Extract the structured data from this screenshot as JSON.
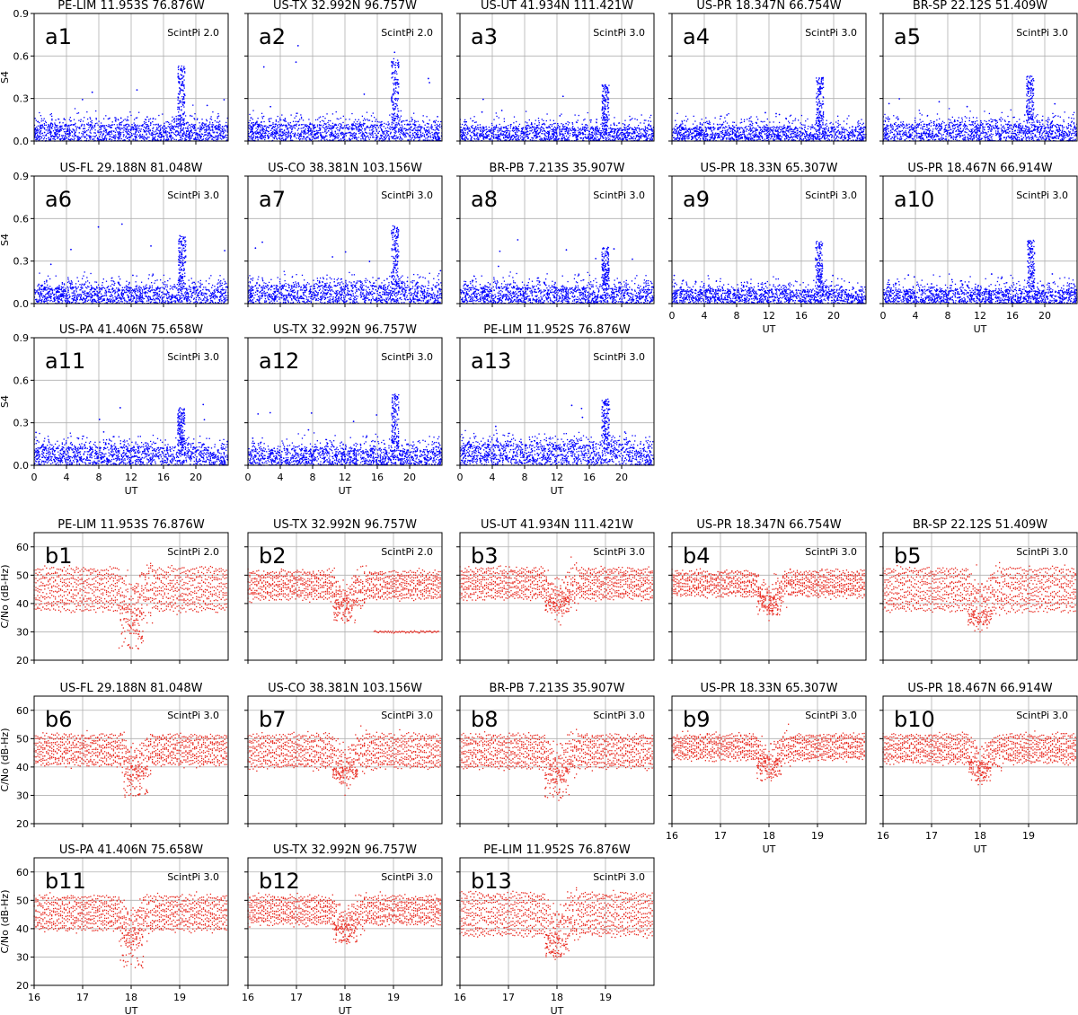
{
  "figure": {
    "groups": [
      {
        "id": "a",
        "ylabel": "S4",
        "xlabel": "UT",
        "dot_color": "#0000ff",
        "xticks": [
          "0",
          "4",
          "8",
          "12",
          "16",
          "20"
        ],
        "yticks": [
          "0.0",
          "0.3",
          "0.6",
          "0.9"
        ]
      },
      {
        "id": "b",
        "ylabel": "C/No (dB-Hz)",
        "xlabel": "UT",
        "dot_color": "#e8261c",
        "xticks": [
          "16",
          "17",
          "18",
          "19"
        ],
        "yticks": [
          "20",
          "30",
          "40",
          "50",
          "60"
        ]
      }
    ]
  },
  "chart_data": [
    {
      "type": "scatter",
      "panel": "a1",
      "title": "PE-LIM 11.953S 76.876W",
      "annotation": "ScintPi 2.0",
      "ylabel": "S4",
      "xlim": [
        0,
        24
      ],
      "ylim": [
        0,
        0.9
      ],
      "grid": true,
      "series": [
        {
          "values_note_baseline": 0.12,
          "peak_x": 18.2,
          "peak_y": 0.53,
          "max_outlier": 0.49
        }
      ]
    },
    {
      "type": "scatter",
      "panel": "a2",
      "title": "US-TX 32.992N 96.757W",
      "annotation": "ScintPi 2.0",
      "ylim": [
        0,
        0.9
      ],
      "xlim": [
        0,
        24
      ],
      "grid": true,
      "series": [
        {
          "baseline": 0.12,
          "peak_x": 18.2,
          "peak_y": 0.6,
          "max_outlier": 0.81
        }
      ]
    },
    {
      "type": "scatter",
      "panel": "a3",
      "title": "US-UT 41.934N 111.421W",
      "annotation": "ScintPi 3.0",
      "ylim": [
        0,
        0.9
      ],
      "xlim": [
        0,
        24
      ],
      "grid": true,
      "series": [
        {
          "baseline": 0.1,
          "peak_x": 18.0,
          "peak_y": 0.4,
          "max_outlier": 0.33
        }
      ]
    },
    {
      "type": "scatter",
      "panel": "a4",
      "title": "US-PR 18.347N 66.754W",
      "annotation": "ScintPi 3.0",
      "ylim": [
        0,
        0.9
      ],
      "xlim": [
        0,
        24
      ],
      "grid": true,
      "series": [
        {
          "baseline": 0.1,
          "peak_x": 18.3,
          "peak_y": 0.45,
          "max_outlier": 0.2
        }
      ]
    },
    {
      "type": "scatter",
      "panel": "a5",
      "title": "BR-SP 22.12S 51.409W",
      "annotation": "ScintPi 3.0",
      "ylim": [
        0,
        0.9
      ],
      "xlim": [
        0,
        24
      ],
      "grid": true,
      "series": [
        {
          "baseline": 0.12,
          "peak_x": 18.2,
          "peak_y": 0.46,
          "max_outlier": 0.3
        }
      ]
    },
    {
      "type": "scatter",
      "panel": "a6",
      "title": "US-FL 29.188N 81.048W",
      "annotation": "ScintPi 3.0",
      "ylim": [
        0,
        0.9
      ],
      "xlim": [
        0,
        24
      ],
      "grid": true,
      "series": [
        {
          "baseline": 0.12,
          "peak_x": 18.3,
          "peak_y": 0.48,
          "max_outlier": 0.57
        }
      ]
    },
    {
      "type": "scatter",
      "panel": "a7",
      "title": "US-CO 38.381N 103.156W",
      "annotation": "ScintPi 3.0",
      "ylim": [
        0,
        0.9
      ],
      "xlim": [
        0,
        24
      ],
      "grid": true,
      "series": [
        {
          "baseline": 0.13,
          "peak_x": 18.2,
          "peak_y": 0.56,
          "max_outlier": 0.44
        }
      ]
    },
    {
      "type": "scatter",
      "panel": "a8",
      "title": "BR-PB 7.213S 35.907W",
      "annotation": "ScintPi 3.0",
      "ylim": [
        0,
        0.9
      ],
      "xlim": [
        0,
        24
      ],
      "grid": true,
      "series": [
        {
          "baseline": 0.12,
          "peak_x": 18.0,
          "peak_y": 0.4,
          "max_outlier": 0.45
        }
      ]
    },
    {
      "type": "scatter",
      "panel": "a9",
      "title": "US-PR 18.33N 65.307W",
      "annotation": "ScintPi 3.0",
      "ylim": [
        0,
        0.9
      ],
      "xlim": [
        0,
        24
      ],
      "grid": true,
      "series": [
        {
          "baseline": 0.1,
          "peak_x": 18.2,
          "peak_y": 0.44,
          "max_outlier": 0.2
        }
      ]
    },
    {
      "type": "scatter",
      "panel": "a10",
      "title": "US-PR 18.467N 66.914W",
      "annotation": "ScintPi 3.0",
      "ylim": [
        0,
        0.9
      ],
      "xlim": [
        0,
        24
      ],
      "grid": true,
      "series": [
        {
          "baseline": 0.1,
          "peak_x": 18.3,
          "peak_y": 0.45,
          "max_outlier": 0.25
        }
      ]
    },
    {
      "type": "scatter",
      "panel": "a11",
      "title": "US-PA 41.406N 75.658W",
      "annotation": "ScintPi 3.0",
      "ylim": [
        0,
        0.9
      ],
      "xlim": [
        0,
        24
      ],
      "grid": true,
      "series": [
        {
          "baseline": 0.13,
          "peak_x": 18.2,
          "peak_y": 0.41,
          "max_outlier": 0.46
        }
      ]
    },
    {
      "type": "scatter",
      "panel": "a12",
      "title": "US-TX 32.992N 96.757W",
      "annotation": "ScintPi 3.0",
      "ylim": [
        0,
        0.9
      ],
      "xlim": [
        0,
        24
      ],
      "grid": true,
      "series": [
        {
          "baseline": 0.12,
          "peak_x": 18.2,
          "peak_y": 0.51,
          "max_outlier": 0.38
        }
      ]
    },
    {
      "type": "scatter",
      "panel": "a13",
      "title": "PE-LIM 11.952S 76.876W",
      "annotation": "ScintPi 3.0",
      "ylim": [
        0,
        0.9
      ],
      "xlim": [
        0,
        24
      ],
      "grid": true,
      "series": [
        {
          "baseline": 0.15,
          "peak_x": 18.0,
          "peak_y": 0.47,
          "max_outlier": 0.48
        }
      ]
    },
    {
      "type": "scatter",
      "panel": "b1",
      "title": "PE-LIM 11.953S 76.876W",
      "annotation": "ScintPi 2.0",
      "ylabel": "C/No (dB-Hz)",
      "xlim": [
        16,
        20
      ],
      "ylim": [
        20,
        65
      ],
      "grid": true,
      "series": [
        {
          "level_high": 52,
          "level_low": 38,
          "dip_x": 18.0,
          "dip_min": 24
        }
      ]
    },
    {
      "type": "scatter",
      "panel": "b2",
      "title": "US-TX 32.992N 96.757W",
      "annotation": "ScintPi 2.0",
      "xlim": [
        16,
        20
      ],
      "ylim": [
        20,
        65
      ],
      "grid": true,
      "series": [
        {
          "level_high": 51,
          "level_low": 42,
          "dip_x": 18.0,
          "dip_min": 33,
          "tail_level": 30
        }
      ]
    },
    {
      "type": "scatter",
      "panel": "b3",
      "title": "US-UT 41.934N 111.421W",
      "annotation": "ScintPi 3.0",
      "xlim": [
        16,
        20
      ],
      "ylim": [
        20,
        65
      ],
      "grid": true,
      "series": [
        {
          "level_high": 52,
          "level_low": 42,
          "dip_x": 18.0,
          "dip_min": 37
        }
      ]
    },
    {
      "type": "scatter",
      "panel": "b4",
      "title": "US-PR 18.347N 66.754W",
      "annotation": "ScintPi 3.0",
      "xlim": [
        16,
        20
      ],
      "ylim": [
        20,
        65
      ],
      "grid": true,
      "series": [
        {
          "level_high": 51,
          "level_low": 43,
          "dip_x": 18.0,
          "dip_min": 36
        }
      ]
    },
    {
      "type": "scatter",
      "panel": "b5",
      "title": "BR-SP 22.12S 51.409W",
      "annotation": "ScintPi 3.0",
      "xlim": [
        16,
        20
      ],
      "ylim": [
        20,
        65
      ],
      "grid": true,
      "series": [
        {
          "level_high": 52,
          "level_low": 38,
          "dip_x": 18.0,
          "dip_min": 32
        }
      ]
    },
    {
      "type": "scatter",
      "panel": "b6",
      "title": "US-FL 29.188N 81.048W",
      "annotation": "ScintPi 3.0",
      "ylabel": "C/No (dB-Hz)",
      "xlim": [
        16,
        20
      ],
      "ylim": [
        20,
        65
      ],
      "grid": true,
      "series": [
        {
          "level_high": 51,
          "level_low": 41,
          "dip_x": 18.1,
          "dip_min": 29
        }
      ]
    },
    {
      "type": "scatter",
      "panel": "b7",
      "title": "US-CO 38.381N 103.156W",
      "annotation": "ScintPi 3.0",
      "xlim": [
        16,
        20
      ],
      "ylim": [
        20,
        65
      ],
      "grid": true,
      "series": [
        {
          "level_high": 51,
          "level_low": 40,
          "dip_x": 18.0,
          "dip_min": 36
        }
      ]
    },
    {
      "type": "scatter",
      "panel": "b8",
      "title": "BR-PB 7.213S 35.907W",
      "annotation": "ScintPi 3.0",
      "xlim": [
        16,
        20
      ],
      "ylim": [
        20,
        65
      ],
      "grid": true,
      "series": [
        {
          "level_high": 51,
          "level_low": 40,
          "dip_x": 18.0,
          "dip_min": 29
        }
      ]
    },
    {
      "type": "scatter",
      "panel": "b9",
      "title": "US-PR 18.33N 65.307W",
      "annotation": "ScintPi 3.0",
      "xlim": [
        16,
        20
      ],
      "ylim": [
        20,
        65
      ],
      "grid": true,
      "series": [
        {
          "level_high": 51,
          "level_low": 43,
          "dip_x": 18.0,
          "dip_min": 35
        }
      ]
    },
    {
      "type": "scatter",
      "panel": "b10",
      "title": "US-PR 18.467N 66.914W",
      "annotation": "ScintPi 3.0",
      "xlim": [
        16,
        20
      ],
      "ylim": [
        20,
        65
      ],
      "grid": true,
      "series": [
        {
          "level_high": 51,
          "level_low": 42,
          "dip_x": 18.0,
          "dip_min": 35
        }
      ]
    },
    {
      "type": "scatter",
      "panel": "b11",
      "title": "US-PA 41.406N 75.658W",
      "annotation": "ScintPi 3.0",
      "ylabel": "C/No (dB-Hz)",
      "xlim": [
        16,
        20
      ],
      "ylim": [
        20,
        65
      ],
      "grid": true,
      "series": [
        {
          "level_high": 51,
          "level_low": 40,
          "dip_x": 18.0,
          "dip_min": 26
        }
      ]
    },
    {
      "type": "scatter",
      "panel": "b12",
      "title": "US-TX 32.992N 96.757W",
      "annotation": "ScintPi 3.0",
      "xlim": [
        16,
        20
      ],
      "ylim": [
        20,
        65
      ],
      "grid": true,
      "series": [
        {
          "level_high": 51,
          "level_low": 42,
          "dip_x": 18.0,
          "dip_min": 35
        }
      ]
    },
    {
      "type": "scatter",
      "panel": "b13",
      "title": "PE-LIM 11.952S 76.876W",
      "annotation": "ScintPi 3.0",
      "xlim": [
        16,
        20
      ],
      "ylim": [
        20,
        65
      ],
      "grid": true,
      "series": [
        {
          "level_high": 52,
          "level_low": 38,
          "dip_x": 18.0,
          "dip_min": 30
        }
      ]
    }
  ]
}
